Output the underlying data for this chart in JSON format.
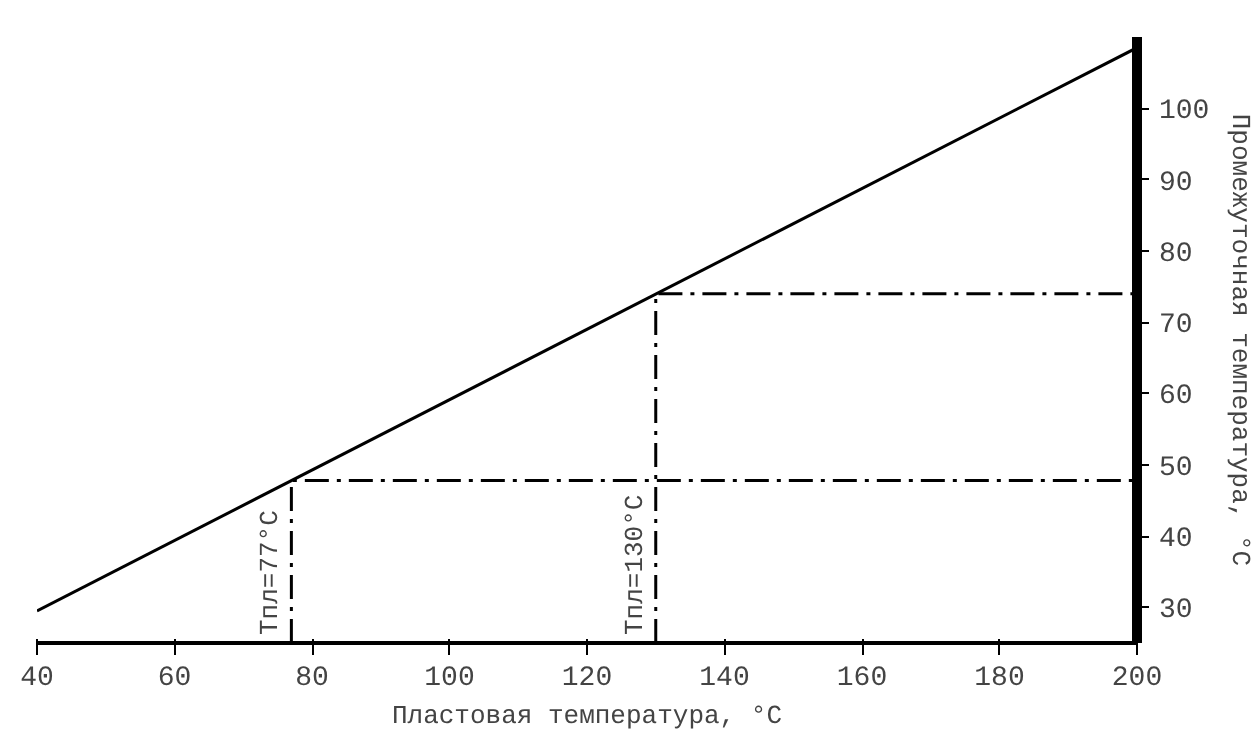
{
  "chart_data": {
    "type": "line",
    "xlabel": "Пластовая температура, °C",
    "ylabel": "Промежуточная температура, °C",
    "xlim": [
      40,
      200
    ],
    "ylim": [
      25,
      110
    ],
    "xticks": [
      40,
      60,
      80,
      100,
      120,
      140,
      160,
      180,
      200
    ],
    "yticks": [
      30,
      40,
      50,
      60,
      70,
      80,
      90,
      100
    ],
    "grid": false,
    "marker": "none",
    "series": [
      {
        "color": "#000000",
        "x": [
          40,
          200
        ],
        "values": [
          29.5,
          108.5
        ],
        "line_style": "solid"
      },
      {
        "color": "#000000",
        "x": [
          77,
          77,
          200
        ],
        "values": [
          25,
          47.8,
          47.8
        ],
        "line_style": "dashed"
      },
      {
        "color": "#000000",
        "x": [
          130,
          130,
          200
        ],
        "values": [
          25,
          74,
          74
        ],
        "line_style": "dashed"
      }
    ],
    "annotations": [
      {
        "text": "Tпл=77°C",
        "x": 77,
        "y": 25
      },
      {
        "text": "Tпл=130°C",
        "x": 130,
        "y": 25
      }
    ]
  }
}
